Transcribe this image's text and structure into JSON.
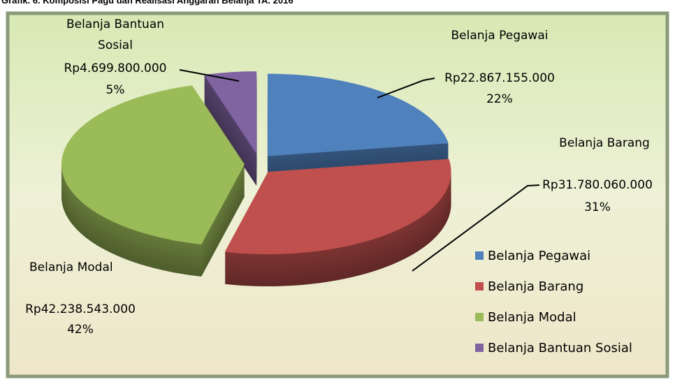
{
  "chart_data": {
    "type": "pie",
    "title": "Grafik. 6. Komposisi Pagu dan Realisasi Anggaran Belanja TA. 2016",
    "categories": [
      "Belanja Pegawai",
      "Belanja Barang",
      "Belanja Modal",
      "Belanja Bantuan Sosial"
    ],
    "values": [
      22867155000,
      31780060000,
      42238543000,
      4699800000
    ],
    "value_labels": [
      "Rp22.867.155.000",
      "Rp31.780.060.000",
      "Rp42.238.543.000",
      "Rp4.699.800.000"
    ],
    "percentages": [
      22,
      31,
      42,
      5
    ],
    "percentage_labels": [
      "22%",
      "31%",
      "42%",
      "5%"
    ],
    "colors": [
      "#4f81bd",
      "#c0504d",
      "#9bbb59",
      "#8064a2"
    ],
    "legend": "right"
  }
}
